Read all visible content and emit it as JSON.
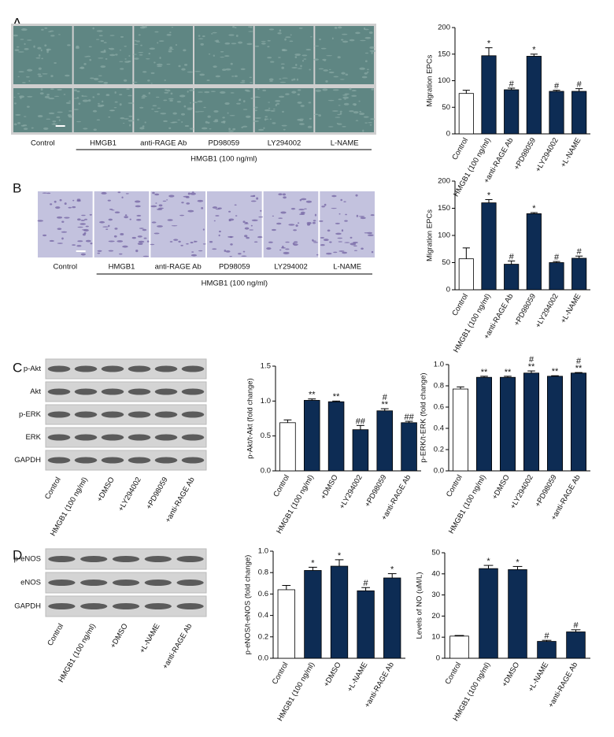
{
  "panel_labels": [
    "A",
    "B",
    "C",
    "D"
  ],
  "micrographs": [
    {
      "labels": [
        "Control",
        "HMGB1",
        "anti-RAGE Ab",
        "PD98059",
        "LY294002",
        "L-NAME"
      ],
      "group_label": "HMGB1 (100 ng/ml)"
    },
    {
      "labels": [
        "Control",
        "HMGB1",
        "anti-RAGE Ab",
        "PD98059",
        "LY294002",
        "L-NAME"
      ],
      "group_label": "HMGB1 (100 ng/ml)"
    }
  ],
  "blots": [
    {
      "rows": [
        "p-Akt",
        "Akt",
        "p-ERK",
        "ERK",
        "GAPDH"
      ],
      "lanes": [
        "Control",
        "HMGB1 (100 ng/ml)",
        "+DMSO",
        "+LY294002",
        "+PD98059",
        "+anti-RAGE Ab"
      ]
    },
    {
      "rows": [
        "p-eNOS",
        "eNOS",
        "GAPDH"
      ],
      "lanes": [
        "Control",
        "HMGB1 (100 ng/ml)",
        "+DMSO",
        "+L-NAME",
        "+anti-RAGE Ab"
      ]
    }
  ],
  "chart_data": [
    {
      "type": "bar",
      "y_label": "Migration EPCs",
      "categories": [
        "Control",
        "HMGB1 (100 ng/ml)",
        "+anti-RAGE Ab",
        "+PD98059",
        "+LY294002",
        "+L-NAME"
      ],
      "values": [
        76,
        147,
        83,
        146,
        80,
        80
      ],
      "errors": [
        6,
        15,
        3,
        4,
        2,
        5
      ],
      "annotations": [
        null,
        [
          "*"
        ],
        [
          "#"
        ],
        [
          "*"
        ],
        [
          "#"
        ],
        [
          "#"
        ]
      ],
      "colors": [
        "#ffffff",
        "#0d2c54",
        "#0d2c54",
        "#0d2c54",
        "#0d2c54",
        "#0d2c54"
      ],
      "ylim": [
        0,
        200
      ],
      "yticks": [
        0,
        50,
        100,
        150,
        200
      ]
    },
    {
      "type": "bar",
      "y_label": "Migration EPCs",
      "categories": [
        "Control",
        "HMGB1 (100 ng/ml)",
        "+anti-RAGE Ab",
        "+PD98059",
        "+LY294002",
        "+L-NAME"
      ],
      "values": [
        57,
        160,
        47,
        140,
        50,
        58
      ],
      "errors": [
        20,
        6,
        6,
        2,
        2,
        4
      ],
      "annotations": [
        null,
        [
          "*"
        ],
        [
          "#"
        ],
        [
          "*"
        ],
        [
          "#"
        ],
        [
          "#"
        ]
      ],
      "colors": [
        "#ffffff",
        "#0d2c54",
        "#0d2c54",
        "#0d2c54",
        "#0d2c54",
        "#0d2c54"
      ],
      "ylim": [
        0,
        200
      ],
      "yticks": [
        0,
        50,
        100,
        150,
        200
      ]
    },
    {
      "type": "bar",
      "y_label": "p-Akt/t-Akt (fold change)",
      "categories": [
        "Control",
        "HMGB1 (100 ng/ml)",
        "+DMSO",
        "+LY294002",
        "+PD98059",
        "+anti-RAGE Ab"
      ],
      "values": [
        0.69,
        1.01,
        0.99,
        0.59,
        0.86,
        0.69
      ],
      "errors": [
        0.04,
        0.02,
        0.01,
        0.06,
        0.03,
        0.02
      ],
      "annotations": [
        null,
        [
          "**"
        ],
        [
          "**"
        ],
        [
          "##"
        ],
        [
          "**",
          "#"
        ],
        [
          "##"
        ]
      ],
      "colors": [
        "#ffffff",
        "#0d2c54",
        "#0d2c54",
        "#0d2c54",
        "#0d2c54",
        "#0d2c54"
      ],
      "ylim": [
        0,
        1.5
      ],
      "yticks": [
        {
          "value": 0,
          "label": "0.0"
        },
        0.5,
        {
          "value": 1,
          "label": "1.0"
        },
        1.5
      ]
    },
    {
      "type": "bar",
      "y_label": "p-ERK/t-ERK (fold change)",
      "categories": [
        "Control",
        "HMGB1 (100 ng/ml)",
        "+DMSO",
        "+LY294002",
        "+PD98059",
        "+anti-RAGE Ab"
      ],
      "values": [
        0.77,
        0.88,
        0.88,
        0.92,
        0.89,
        0.92
      ],
      "errors": [
        0.02,
        0.01,
        0.01,
        0.02,
        0.005,
        0.005
      ],
      "annotations": [
        null,
        [
          "**"
        ],
        [
          "**"
        ],
        [
          "**",
          "#"
        ],
        [
          "**"
        ],
        [
          "**",
          "#"
        ]
      ],
      "colors": [
        "#ffffff",
        "#0d2c54",
        "#0d2c54",
        "#0d2c54",
        "#0d2c54",
        "#0d2c54"
      ],
      "ylim": [
        0,
        1
      ],
      "yticks": [
        {
          "value": 0,
          "label": "0.0"
        },
        0.2,
        0.4,
        0.6,
        0.8,
        {
          "value": 1,
          "label": "1.0"
        }
      ]
    },
    {
      "type": "bar",
      "y_label": "p-eNOS/t-eNOS (fold change)",
      "categories": [
        "Control",
        "HMGB1 (100 ng/ml)",
        "+DMSO",
        "+L-NAME",
        "+anti-RAGE Ab"
      ],
      "values": [
        0.64,
        0.82,
        0.86,
        0.63,
        0.75
      ],
      "errors": [
        0.04,
        0.03,
        0.06,
        0.03,
        0.04
      ],
      "annotations": [
        null,
        [
          "*"
        ],
        [
          "*"
        ],
        [
          "#"
        ],
        [
          "*"
        ]
      ],
      "colors": [
        "#ffffff",
        "#0d2c54",
        "#0d2c54",
        "#0d2c54",
        "#0d2c54"
      ],
      "ylim": [
        0,
        1
      ],
      "yticks": [
        {
          "value": 0,
          "label": "0.0"
        },
        0.2,
        0.4,
        0.6,
        0.8,
        {
          "value": 1,
          "label": "1.0"
        }
      ]
    },
    {
      "type": "bar",
      "y_label": "Levels of NO (uM/L)",
      "categories": [
        "Control",
        "HMGB1 (100 ng/ml)",
        "+DMSO",
        "+L-NAME",
        "+anti-RAGE Ab"
      ],
      "values": [
        10.5,
        42.5,
        42,
        8,
        12.5
      ],
      "errors": [
        0.3,
        1.5,
        1.5,
        0.5,
        1
      ],
      "annotations": [
        null,
        [
          "*"
        ],
        [
          "*"
        ],
        [
          "#"
        ],
        [
          "#"
        ]
      ],
      "colors": [
        "#ffffff",
        "#0d2c54",
        "#0d2c54",
        "#0d2c54",
        "#0d2c54"
      ],
      "ylim": [
        0,
        50
      ],
      "yticks": [
        0,
        10,
        20,
        30,
        40,
        50
      ]
    }
  ]
}
